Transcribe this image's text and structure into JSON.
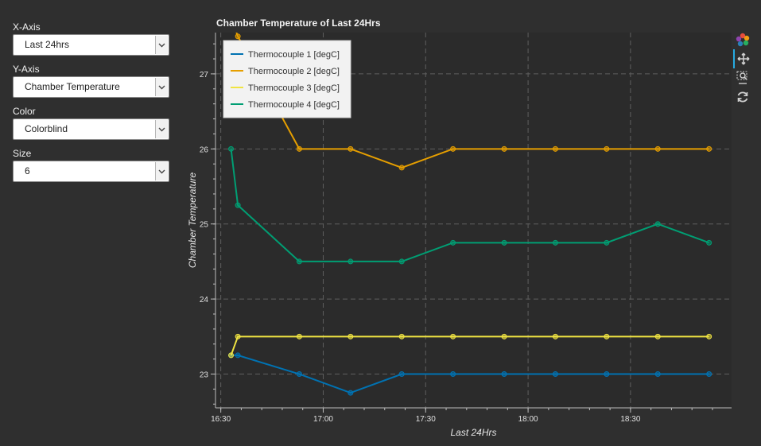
{
  "controls": [
    {
      "label": "X-Axis",
      "value": "Last 24hrs"
    },
    {
      "label": "Y-Axis",
      "value": "Chamber Temperature"
    },
    {
      "label": "Color",
      "value": "Colorblind"
    },
    {
      "label": "Size",
      "value": "6"
    }
  ],
  "toolbar": {
    "tools": [
      "bokeh-logo-icon",
      "pan-icon",
      "box-zoom-icon",
      "reset-icon"
    ]
  },
  "chart_data": {
    "type": "line",
    "title": "Chamber Temperature of Last 24Hrs",
    "xlabel": "Last 24Hrs",
    "ylabel": "Chamber Temperature",
    "x": [
      "16:33",
      "16:35",
      "16:53",
      "17:08",
      "17:23",
      "17:38",
      "17:53",
      "18:08",
      "18:23",
      "18:38",
      "18:53"
    ],
    "xticks": [
      "16:30",
      "17:00",
      "17:30",
      "18:00",
      "18:30"
    ],
    "yticks": [
      "23",
      "24",
      "25",
      "26",
      "27"
    ],
    "ylim": [
      22.55,
      27.55
    ],
    "grid": true,
    "legend_position": "top-left",
    "series": [
      {
        "name": "Thermocouple 1 [degC]",
        "color": "#0072b2",
        "values": [
          23.25,
          23.25,
          23.0,
          22.75,
          23.0,
          23.0,
          23.0,
          23.0,
          23.0,
          23.0,
          23.0
        ]
      },
      {
        "name": "Thermocouple 2 [degC]",
        "color": "#e69f00",
        "values": [
          27.75,
          27.5,
          26.0,
          26.0,
          25.75,
          26.0,
          26.0,
          26.0,
          26.0,
          26.0,
          26.0
        ]
      },
      {
        "name": "Thermocouple 3 [degC]",
        "color": "#f0e442",
        "values": [
          23.25,
          23.5,
          23.5,
          23.5,
          23.5,
          23.5,
          23.5,
          23.5,
          23.5,
          23.5,
          23.5
        ]
      },
      {
        "name": "Thermocouple 4 [degC]",
        "color": "#009e73",
        "values": [
          26.0,
          25.25,
          24.5,
          24.5,
          24.5,
          24.75,
          24.75,
          24.75,
          24.75,
          25.0,
          24.75
        ]
      }
    ]
  }
}
